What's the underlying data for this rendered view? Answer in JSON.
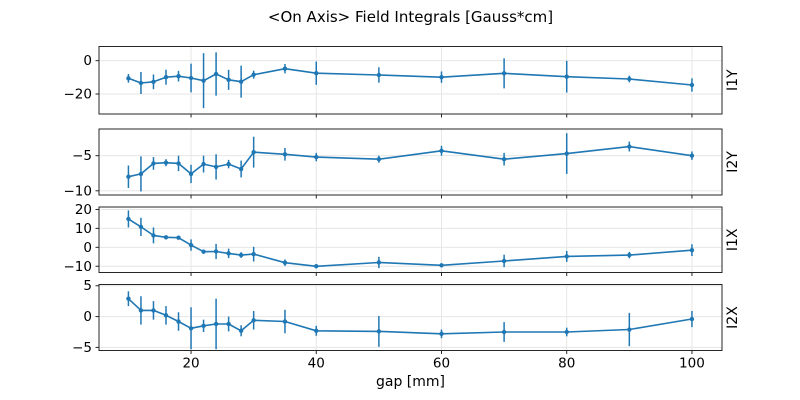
{
  "chart_data": {
    "type": "line",
    "title": "<On Axis> Field Integrals [Gauss*cm]",
    "xlabel": "gap [mm]",
    "legend": null,
    "grid": true,
    "line_color": "#1f77b4",
    "grid_color": "#e6e6e6",
    "spine_color": "#262626",
    "text_color": "#000000",
    "x": [
      10,
      12,
      14,
      16,
      18,
      20,
      22,
      24,
      26,
      28,
      30,
      35,
      40,
      50,
      60,
      70,
      80,
      90,
      100
    ],
    "xticks": [
      20,
      40,
      60,
      80,
      100
    ],
    "xlim": [
      5.3,
      104.8
    ],
    "marker": "point",
    "error_bars": true,
    "subplots": [
      {
        "label": "I1Y",
        "yticks": [
          0,
          -20
        ],
        "ylim": [
          -32,
          8.5
        ],
        "y": [
          -10.6,
          -13.4,
          -12.7,
          -9.9,
          -9.3,
          -10.4,
          -12.0,
          -8.0,
          -11.5,
          -12.6,
          -8.4,
          -4.8,
          -7.5,
          -8.6,
          -9.9,
          -7.6,
          -9.6,
          -11.0,
          -14.6
        ],
        "yerr": [
          2.6,
          6.6,
          4.4,
          4.5,
          3.2,
          8.6,
          16.5,
          13.0,
          6.0,
          9.6,
          2.4,
          2.8,
          7.0,
          4.6,
          3.4,
          9.0,
          9.5,
          2.0,
          4.0
        ]
      },
      {
        "label": "I2Y",
        "yticks": [
          -5,
          -10
        ],
        "ylim": [
          -10.6,
          -1.2
        ],
        "y": [
          -8.0,
          -7.6,
          -6.1,
          -6.0,
          -6.1,
          -7.6,
          -6.2,
          -6.6,
          -6.2,
          -6.9,
          -4.5,
          -4.8,
          -5.2,
          -5.5,
          -4.3,
          -5.5,
          -4.7,
          -3.7,
          -5.0
        ],
        "yerr": [
          1.6,
          2.5,
          0.9,
          0.5,
          1.1,
          1.3,
          1.2,
          1.8,
          0.6,
          1.2,
          2.2,
          0.9,
          0.6,
          0.5,
          0.7,
          0.9,
          2.9,
          0.7,
          0.6
        ]
      },
      {
        "label": "I1X",
        "yticks": [
          20,
          10,
          0,
          -10
        ],
        "ylim": [
          -13.3,
          21.3
        ],
        "y": [
          15.0,
          10.8,
          6.3,
          5.3,
          5.1,
          1.2,
          -2.3,
          -2.2,
          -3.2,
          -4.1,
          -3.6,
          -8.1,
          -10.0,
          -8.0,
          -9.5,
          -7.2,
          -4.8,
          -4.1,
          -1.5
        ],
        "yerr": [
          4.5,
          4.8,
          4.2,
          1.0,
          1.0,
          3.0,
          1.0,
          4.0,
          2.5,
          1.5,
          3.9,
          1.7,
          1.0,
          3.0,
          0.8,
          3.3,
          2.9,
          1.7,
          3.1
        ]
      },
      {
        "label": "I2X",
        "yticks": [
          5,
          0,
          -5
        ],
        "ylim": [
          -5.5,
          5.2
        ],
        "y": [
          2.9,
          1.0,
          1.0,
          0.2,
          -0.8,
          -1.9,
          -1.5,
          -1.2,
          -1.2,
          -2.3,
          -0.6,
          -0.8,
          -2.3,
          -2.4,
          -2.8,
          -2.5,
          -2.5,
          -2.1,
          -0.4
        ],
        "yerr": [
          1.2,
          2.3,
          1.5,
          1.5,
          1.5,
          3.4,
          1.0,
          4.1,
          1.2,
          0.9,
          1.5,
          1.9,
          0.8,
          2.5,
          0.7,
          1.6,
          0.7,
          2.7,
          1.3
        ]
      }
    ]
  }
}
